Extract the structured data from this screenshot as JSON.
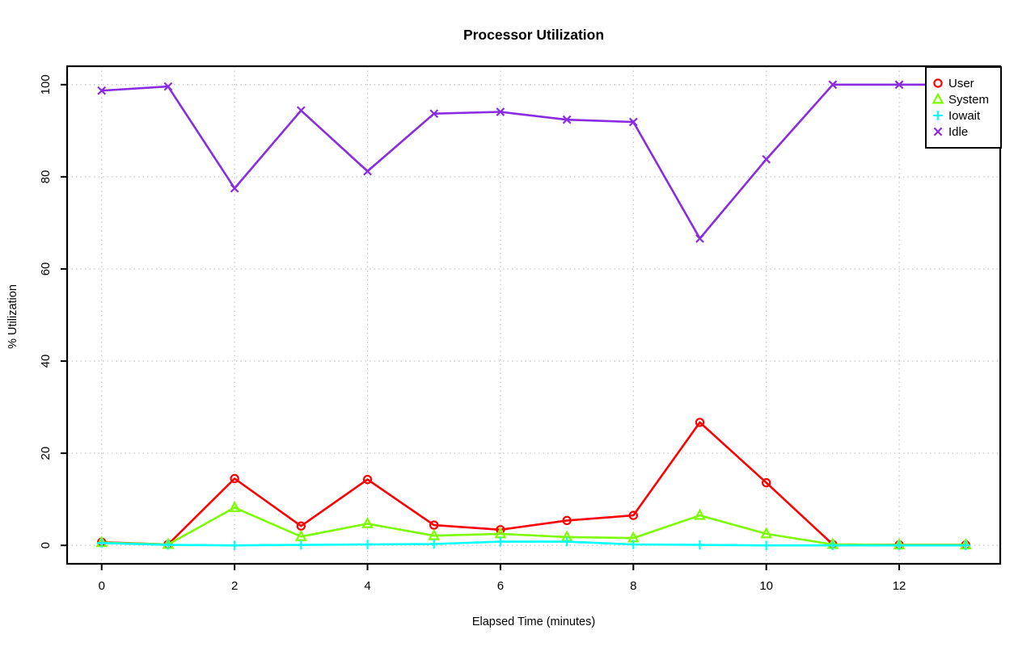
{
  "chart_data": {
    "type": "line",
    "title": "Processor Utilization",
    "xlabel": "Elapsed Time (minutes)",
    "ylabel": "% Utilization",
    "x": [
      0,
      1,
      2,
      3,
      4,
      5,
      6,
      7,
      8,
      9,
      10,
      11,
      12,
      13
    ],
    "xlim": [
      0,
      13
    ],
    "ylim": [
      0,
      100
    ],
    "xticks": [
      0,
      2,
      4,
      6,
      8,
      10,
      12
    ],
    "yticks": [
      0,
      20,
      40,
      60,
      80,
      100
    ],
    "grid": true,
    "legend_position": "top-right",
    "series": [
      {
        "name": "User",
        "color": "#ff0000",
        "marker": "open-circle",
        "values": [
          0.7,
          0.2,
          14.5,
          4.2,
          14.3,
          4.4,
          3.4,
          5.4,
          6.5,
          26.7,
          13.6,
          0.2,
          0.1,
          0.1
        ]
      },
      {
        "name": "System",
        "color": "#7cfc00",
        "marker": "open-triangle",
        "values": [
          0.6,
          0.2,
          8.2,
          1.9,
          4.7,
          2.1,
          2.5,
          1.8,
          1.6,
          6.5,
          2.5,
          0.2,
          0.1,
          0.1
        ]
      },
      {
        "name": "Iowait",
        "color": "#00ffff",
        "marker": "plus",
        "values": [
          0.5,
          0.1,
          0,
          0.1,
          0.2,
          0.3,
          0.8,
          0.8,
          0.2,
          0.1,
          0,
          0,
          0,
          0
        ]
      },
      {
        "name": "Idle",
        "color": "#8a2be2",
        "marker": "x-cross",
        "values": [
          98.7,
          99.6,
          77.5,
          94.4,
          81.2,
          93.7,
          94.1,
          92.4,
          91.9,
          66.6,
          83.8,
          100,
          100,
          100
        ]
      }
    ]
  },
  "colors": {
    "grid": "#c8c8c8",
    "axis": "#000000",
    "background": "#ffffff",
    "text": "#000000"
  }
}
